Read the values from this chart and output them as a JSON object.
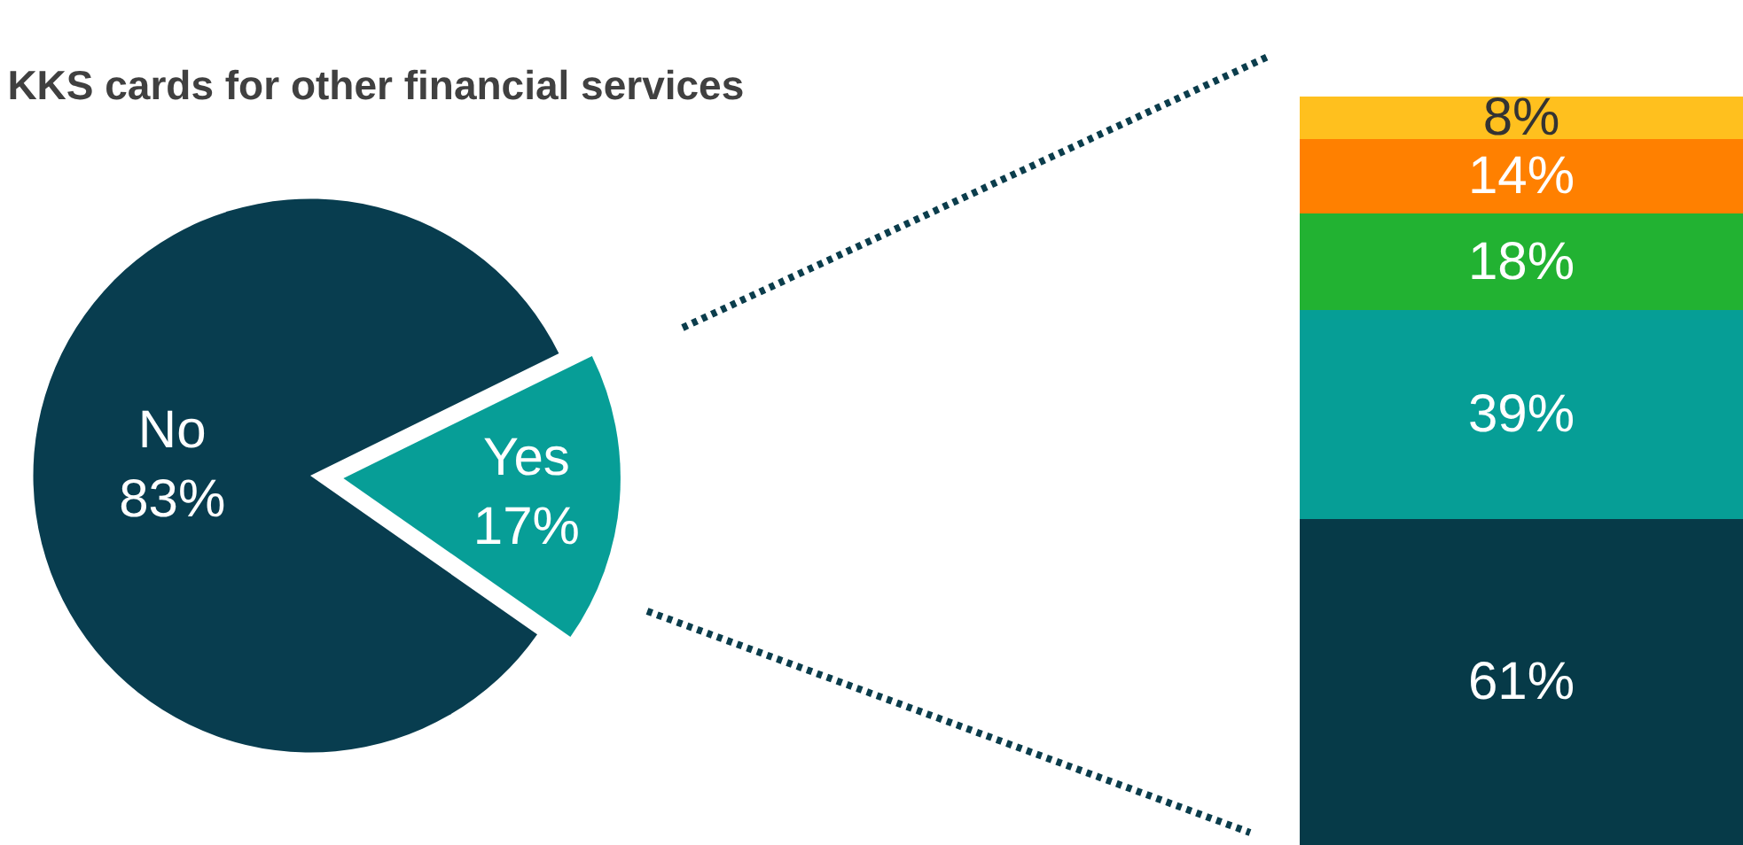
{
  "chart_data": [
    {
      "type": "pie",
      "title": "KKS cards for other financial services",
      "categories": [
        "No",
        "Yes"
      ],
      "values": [
        83,
        17
      ],
      "value_labels": [
        "83%",
        "17%"
      ],
      "colors": [
        "#083d4f",
        "#079e97"
      ]
    },
    {
      "type": "bar",
      "stacked": true,
      "categories": [
        null
      ],
      "tick_labels": false,
      "series": [
        {
          "color": "#063a48",
          "values": [
            61
          ],
          "value_labels": [
            "61%"
          ]
        },
        {
          "color": "#069e96",
          "values": [
            39
          ],
          "value_labels": [
            "39%"
          ]
        },
        {
          "color": "#22b232",
          "values": [
            18
          ],
          "value_labels": [
            "18%"
          ]
        },
        {
          "color": "#ff8000",
          "values": [
            14
          ],
          "value_labels": [
            "14%"
          ]
        },
        {
          "color": "#ffc01e",
          "values": [
            8
          ],
          "value_labels": [
            "8%"
          ]
        }
      ]
    }
  ]
}
